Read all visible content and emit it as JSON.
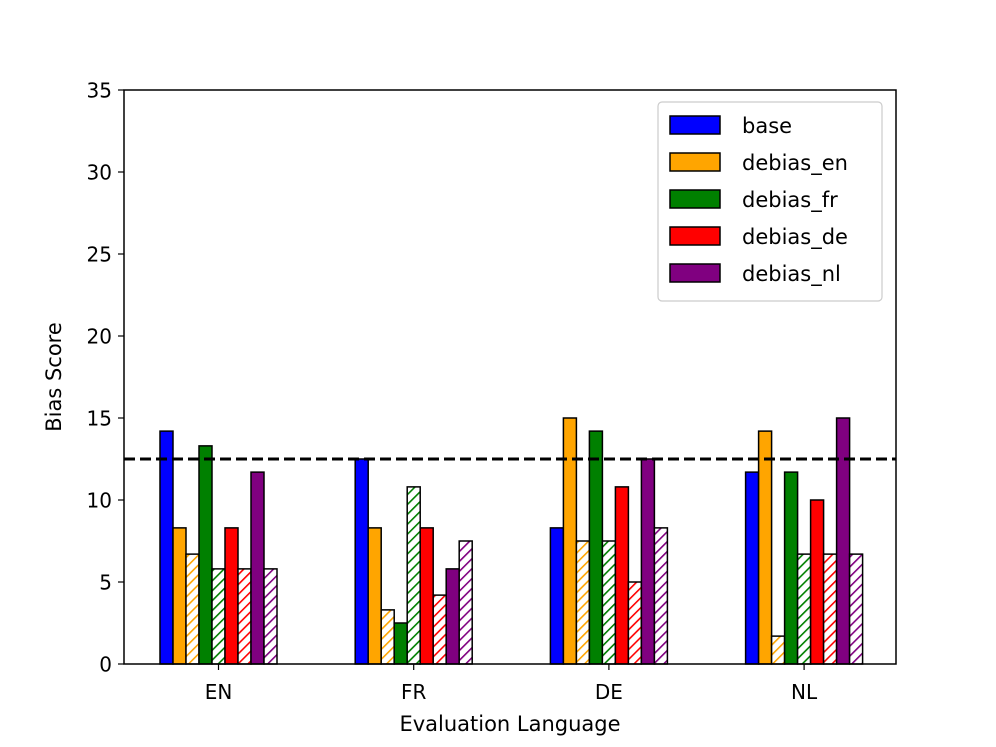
{
  "chart_data": {
    "type": "bar",
    "title": "",
    "xlabel": "Evaluation Language",
    "ylabel": "Bias Score",
    "ylim": [
      0,
      35
    ],
    "yticks": [
      0,
      5,
      10,
      15,
      20,
      25,
      30,
      35
    ],
    "categories": [
      "EN",
      "FR",
      "DE",
      "NL"
    ],
    "reference_line": 12.5,
    "legend_position": "top-right",
    "series": [
      {
        "name": "base",
        "color": "#0000ff",
        "solid": [
          14.2,
          12.5,
          8.3,
          11.7
        ],
        "hatched": [
          null,
          null,
          null,
          null
        ]
      },
      {
        "name": "debias_en",
        "color": "#ffa500",
        "solid": [
          8.3,
          8.3,
          15.0,
          14.2
        ],
        "hatched": [
          6.7,
          3.3,
          7.5,
          1.7
        ]
      },
      {
        "name": "debias_fr",
        "color": "#008000",
        "solid": [
          13.3,
          2.5,
          14.2,
          11.7
        ],
        "hatched": [
          5.8,
          10.8,
          7.5,
          6.7
        ]
      },
      {
        "name": "debias_de",
        "color": "#ff0000",
        "solid": [
          8.3,
          8.3,
          10.8,
          10.0
        ],
        "hatched": [
          5.8,
          4.2,
          5.0,
          6.7
        ]
      },
      {
        "name": "debias_nl",
        "color": "#800080",
        "solid": [
          11.7,
          5.8,
          12.5,
          15.0
        ],
        "hatched": [
          5.8,
          7.5,
          8.3,
          6.7
        ]
      }
    ]
  }
}
